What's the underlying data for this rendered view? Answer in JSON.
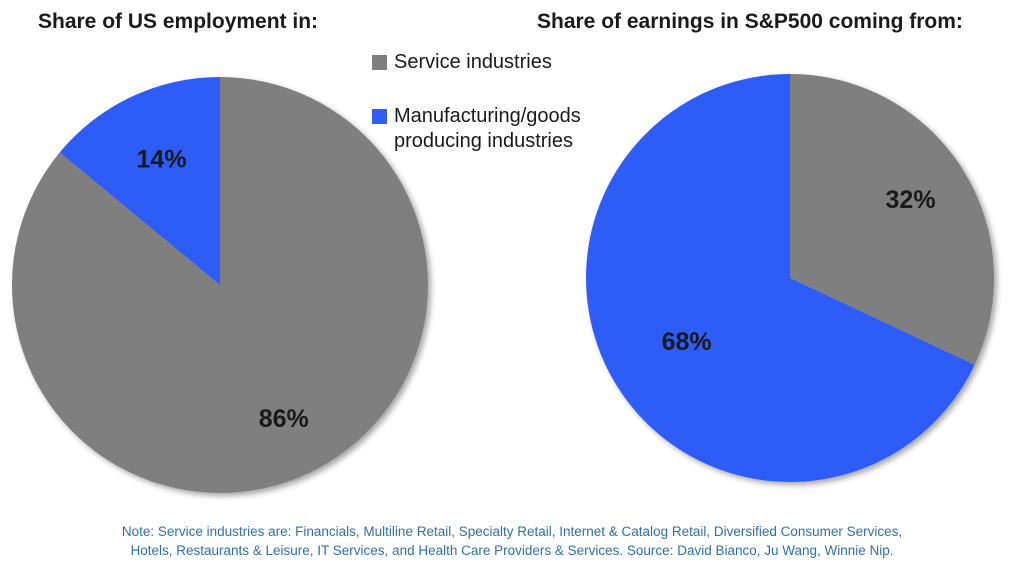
{
  "colors": {
    "service": "#7f7f7f",
    "manufacturing": "#2f5cf6",
    "note_text": "#2f6fb0"
  },
  "legend": {
    "service_label": "Service industries",
    "manufacturing_label_line1": "Manufacturing/goods",
    "manufacturing_label_line2": "producing industries"
  },
  "note": {
    "line1": "Note: Service industries are: Financials, Multiline Retail, Specialty Retail, Internet & Catalog Retail, Diversified Consumer Services,",
    "line2": "Hotels, Restaurants & Leisure, IT Services, and Health Care Providers & Services. Source: David Bianco, Ju Wang, Winnie Nip."
  },
  "chart_data": [
    {
      "type": "pie",
      "title": "Share of US employment in:",
      "series": [
        {
          "name": "Service industries",
          "value": 86,
          "label": "86%"
        },
        {
          "name": "Manufacturing/goods producing industries",
          "value": 14,
          "label": "14%"
        }
      ],
      "start_angle": "12 o'clock, clockwise, Service first",
      "legend": "shared, top-center"
    },
    {
      "type": "pie",
      "title": "Share of earnings in S&P500 coming from:",
      "series": [
        {
          "name": "Service industries",
          "value": 32,
          "label": "32%"
        },
        {
          "name": "Manufacturing/goods producing industries",
          "value": 68,
          "label": "68%"
        }
      ],
      "start_angle": "12 o'clock, clockwise, Service first",
      "legend": "shared, top-center"
    }
  ]
}
